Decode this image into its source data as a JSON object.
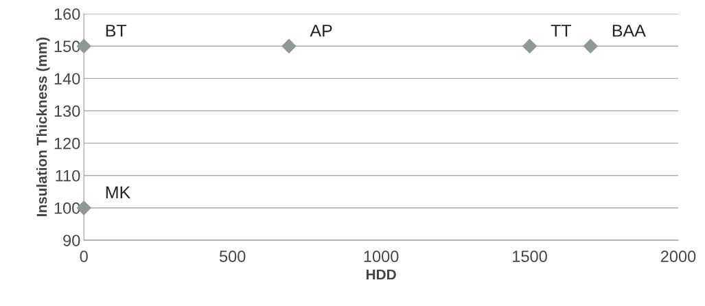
{
  "chart_data": {
    "type": "scatter",
    "xlabel": "HDD",
    "ylabel": "Insulation Thickness (mm)",
    "x": [
      0,
      0,
      690,
      1500,
      1705
    ],
    "series": [
      {
        "color": "#8c9a90",
        "values": [
          150,
          100,
          150,
          150,
          150
        ]
      }
    ],
    "marker": "diamond",
    "xlim": [
      0,
      2000
    ],
    "xticks": [
      0,
      500,
      1000,
      1500,
      2000
    ],
    "ylim": [
      90,
      160
    ],
    "yticks": [
      90,
      100,
      110,
      120,
      130,
      140,
      150,
      160
    ],
    "grid": "y",
    "annotations": [
      {
        "text": "BT",
        "x": 0,
        "y": 150
      },
      {
        "text": "MK",
        "x": 0,
        "y": 100
      },
      {
        "text": "AP",
        "x": 690,
        "y": 150
      },
      {
        "text": "TT",
        "x": 1500,
        "y": 150
      },
      {
        "text": "BAA",
        "x": 1705,
        "y": 150
      }
    ]
  }
}
